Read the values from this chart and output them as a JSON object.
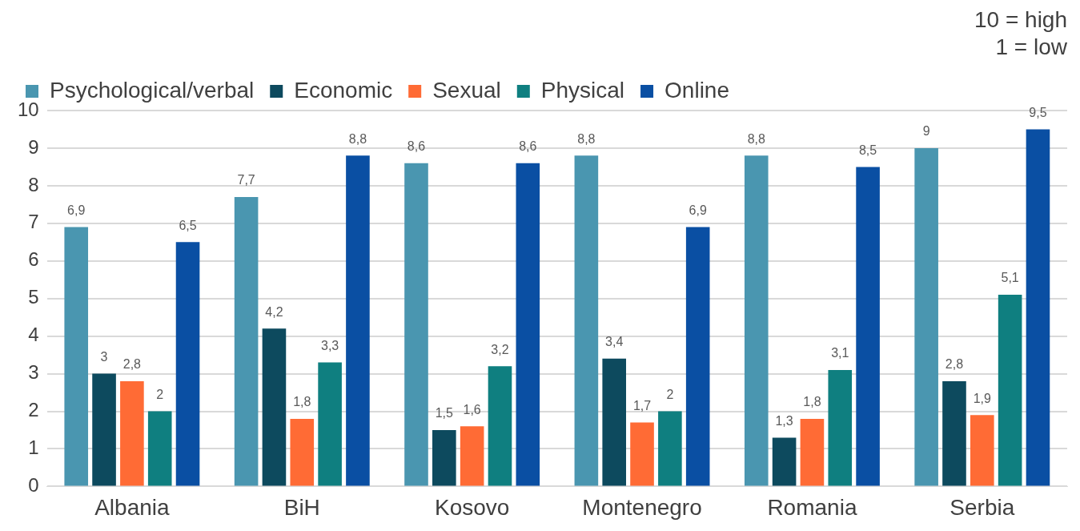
{
  "chart_data": {
    "type": "bar",
    "categories": [
      "Albania",
      "BiH",
      "Kosovo",
      "Montenegro",
      "Romania",
      "Serbia"
    ],
    "series": [
      {
        "name": "Psychological/verbal",
        "color": "#4a96b0",
        "values": [
          6.9,
          7.7,
          8.6,
          8.8,
          8.8,
          9
        ],
        "value_labels": [
          "6,9",
          "7,7",
          "8,6",
          "8,8",
          "8,8",
          "9"
        ]
      },
      {
        "name": "Economic",
        "color": "#0d4a5e",
        "values": [
          3,
          4.2,
          1.5,
          3.4,
          1.3,
          2.8
        ],
        "value_labels": [
          "3",
          "4,2",
          "1,5",
          "3,4",
          "1,3",
          "2,8"
        ]
      },
      {
        "name": "Sexual",
        "color": "#ff6b35",
        "values": [
          2.8,
          1.8,
          1.6,
          1.7,
          1.8,
          1.9
        ],
        "value_labels": [
          "2,8",
          "1,8",
          "1,6",
          "1,7",
          "1,8",
          "1,9"
        ]
      },
      {
        "name": "Physical",
        "color": "#0f7f80",
        "values": [
          2,
          3.3,
          3.2,
          2,
          3.1,
          5.1
        ],
        "value_labels": [
          "2",
          "3,3",
          "3,2",
          "2",
          "3,1",
          "5,1"
        ]
      },
      {
        "name": "Online",
        "color": "#0a4fa3",
        "values": [
          6.5,
          8.8,
          8.6,
          6.9,
          8.5,
          9.5
        ],
        "value_labels": [
          "6,5",
          "8,8",
          "8,6",
          "6,9",
          "8,5",
          "9,5"
        ]
      }
    ],
    "ylim": [
      0,
      10
    ],
    "yticks": [
      0,
      1,
      2,
      3,
      4,
      5,
      6,
      7,
      8,
      9,
      10
    ],
    "grid": "y",
    "legend": "top left",
    "annotations": [
      "10 = high",
      "1 = low"
    ]
  }
}
